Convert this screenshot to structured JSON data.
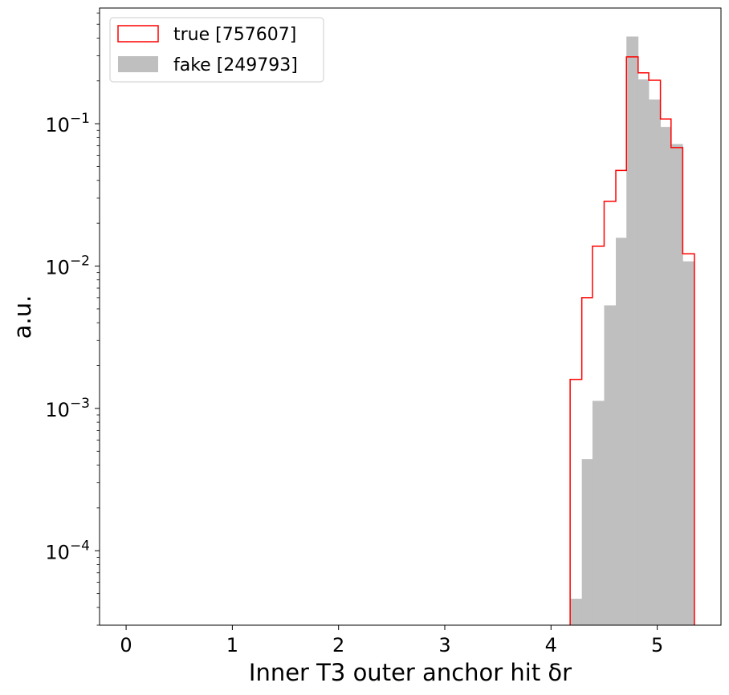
{
  "chart_data": {
    "type": "histogram",
    "xlabel": "Inner T3 outer anchor hit δr",
    "ylabel": "a.u.",
    "xlim": [
      -0.25,
      5.6
    ],
    "ylim": [
      3e-05,
      0.65
    ],
    "yscale": "log",
    "legend_position": "top-left",
    "x_ticks": [
      0,
      1,
      2,
      3,
      4,
      5
    ],
    "x_tick_labels": [
      "0",
      "1",
      "2",
      "3",
      "4",
      "5"
    ],
    "y_ticks": [
      {
        "value": 0.1,
        "base": "10",
        "exp": "−1"
      },
      {
        "value": 0.01,
        "base": "10",
        "exp": "−2"
      },
      {
        "value": 0.001,
        "base": "10",
        "exp": "−3"
      },
      {
        "value": 0.0001,
        "base": "10",
        "exp": "−4"
      }
    ],
    "bin_edges": [
      4.18,
      4.29,
      4.39,
      4.5,
      4.61,
      4.71,
      4.82,
      4.92,
      5.03,
      5.13,
      5.24,
      5.35
    ],
    "series": [
      {
        "name": "true [757607]",
        "style": "step",
        "color": "#ff0000",
        "values": [
          0.0016,
          0.006,
          0.0138,
          0.0285,
          0.047,
          0.295,
          0.228,
          0.202,
          0.108,
          0.068,
          0.0122
        ]
      },
      {
        "name": "fake [249793]",
        "style": "filled",
        "color": "#bfbfbf",
        "values": [
          4.6e-05,
          0.00044,
          0.00113,
          0.0053,
          0.0158,
          0.41,
          0.205,
          0.148,
          0.095,
          0.072,
          0.0108
        ]
      }
    ]
  }
}
